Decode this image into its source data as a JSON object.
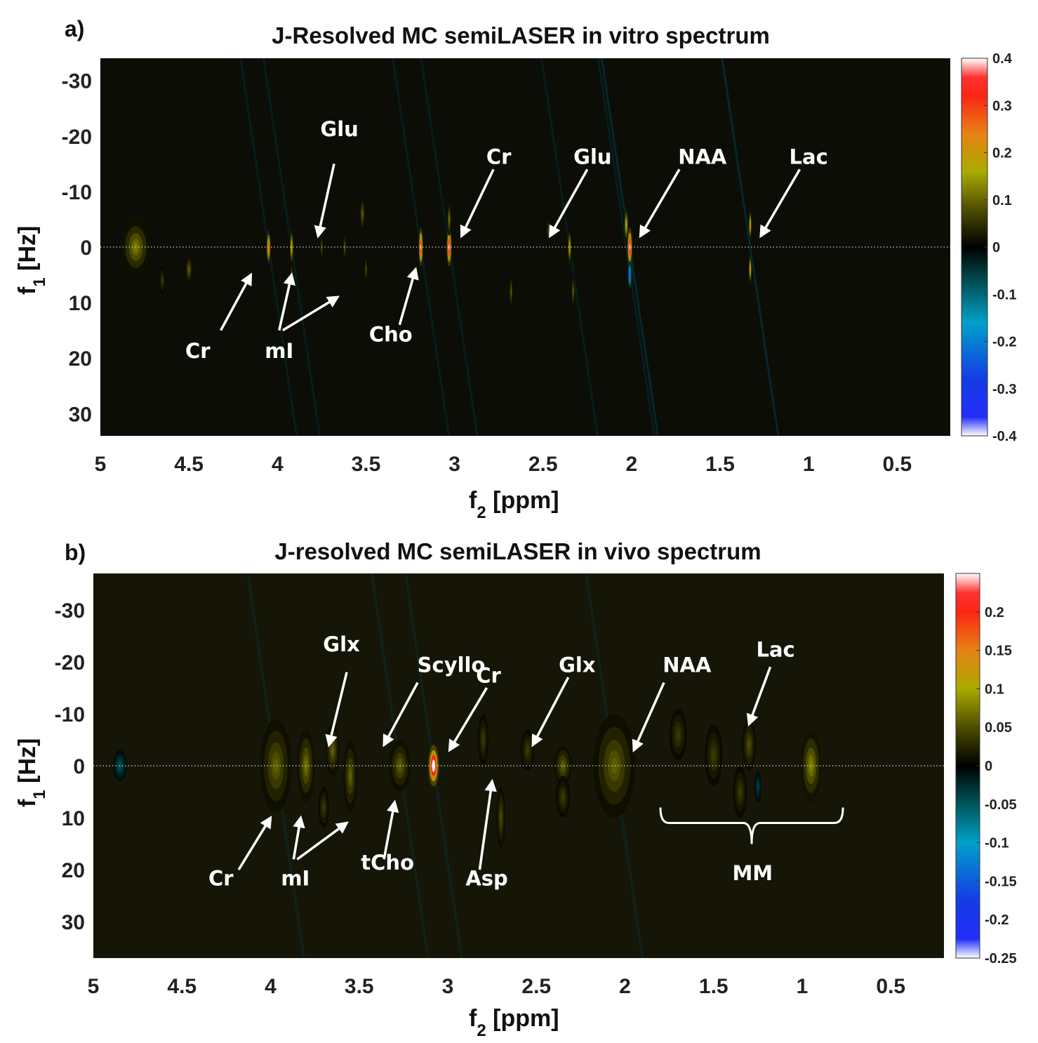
{
  "chart_data": [
    {
      "type": "heatmap",
      "panel_label": "a)",
      "title": "J-Resolved MC semiLASER in vitro spectrum",
      "xlabel": "f",
      "xlabel_sub": "2",
      "xlabel_unit": " [ppm]",
      "ylabel": "f",
      "ylabel_sub": "1",
      "ylabel_unit": " [Hz]",
      "xlim": [
        5,
        0.2
      ],
      "ylim": [
        -34,
        34
      ],
      "xticks": [
        5,
        4.5,
        4,
        3.5,
        3,
        2.5,
        2,
        1.5,
        1,
        0.5
      ],
      "xtick_labels": [
        "5",
        "4.5",
        "4",
        "3.5",
        "3",
        "2.5",
        "2",
        "1.5",
        "1",
        "0.5"
      ],
      "yticks": [
        -30,
        -20,
        -10,
        0,
        10,
        20,
        30
      ],
      "ytick_labels": [
        "-30",
        "-20",
        "-10",
        "0",
        "10",
        "20",
        "30"
      ],
      "colorbar": {
        "range": [
          -0.4,
          0.4
        ],
        "ticks": [
          0.4,
          0.3,
          0.2,
          0.1,
          0,
          -0.1,
          -0.2,
          -0.3,
          -0.4
        ],
        "tick_labels": [
          "0.4",
          "0.3",
          "0.2",
          "0.1",
          "0",
          "-0.1",
          "-0.2",
          "-0.3",
          "-0.4"
        ]
      },
      "peaks": [
        {
          "ppm": 4.05,
          "f1": 0,
          "amp": 0.3,
          "wx": 0.012,
          "wy": 3.0
        },
        {
          "ppm": 3.92,
          "f1": 0,
          "amp": 0.22,
          "wx": 0.01,
          "wy": 3.0
        },
        {
          "ppm": 3.92,
          "f1": 5,
          "amp": 0.08,
          "wx": 0.01,
          "wy": 2.5
        },
        {
          "ppm": 3.75,
          "f1": 0,
          "amp": 0.08,
          "wx": 0.01,
          "wy": 2.5
        },
        {
          "ppm": 3.62,
          "f1": 0,
          "amp": 0.09,
          "wx": 0.01,
          "wy": 2.5
        },
        {
          "ppm": 3.52,
          "f1": -6,
          "amp": 0.1,
          "wx": 0.015,
          "wy": 3.0
        },
        {
          "ppm": 3.5,
          "f1": 4,
          "amp": 0.08,
          "wx": 0.01,
          "wy": 2.5
        },
        {
          "ppm": 4.5,
          "f1": 4,
          "amp": 0.1,
          "wx": 0.02,
          "wy": 2.5
        },
        {
          "ppm": 4.65,
          "f1": 6,
          "amp": 0.06,
          "wx": 0.02,
          "wy": 2.5
        },
        {
          "ppm": 3.19,
          "f1": 0,
          "amp": 0.4,
          "wx": 0.012,
          "wy": 3.5
        },
        {
          "ppm": 3.03,
          "f1": 0,
          "amp": 0.45,
          "wx": 0.014,
          "wy": 3.5
        },
        {
          "ppm": 3.03,
          "f1": -5,
          "amp": 0.12,
          "wx": 0.012,
          "wy": 3.0
        },
        {
          "ppm": 2.68,
          "f1": 8,
          "amp": 0.1,
          "wx": 0.01,
          "wy": 3.0
        },
        {
          "ppm": 2.35,
          "f1": 0,
          "amp": 0.2,
          "wx": 0.01,
          "wy": 3.0
        },
        {
          "ppm": 2.33,
          "f1": 8,
          "amp": 0.1,
          "wx": 0.01,
          "wy": 3.0
        },
        {
          "ppm": 2.47,
          "f1": -3,
          "amp": 0.08,
          "wx": 0.01,
          "wy": 2.5
        },
        {
          "ppm": 2.01,
          "f1": 0,
          "amp": 0.45,
          "wx": 0.014,
          "wy": 3.5
        },
        {
          "ppm": 2.01,
          "f1": 5,
          "amp": -0.3,
          "wx": 0.01,
          "wy": 2.5
        },
        {
          "ppm": 2.03,
          "f1": -4,
          "amp": 0.2,
          "wx": 0.012,
          "wy": 3.0
        },
        {
          "ppm": 1.33,
          "f1": -4,
          "amp": 0.25,
          "wx": 0.008,
          "wy": 2.5
        },
        {
          "ppm": 1.33,
          "f1": 4,
          "amp": 0.25,
          "wx": 0.008,
          "wy": 2.5
        },
        {
          "ppm": 4.8,
          "f1": 0,
          "amp": 0.12,
          "wx": 0.08,
          "wy": 5.0
        }
      ],
      "annotations": [
        {
          "text": "Glu",
          "label_ppm": 3.65,
          "label_f1": -20,
          "arrows": [
            [
              3.68,
              -15,
              3.77,
              -2
            ]
          ]
        },
        {
          "text": "Cr",
          "label_ppm": 2.75,
          "label_f1": -15,
          "arrows": [
            [
              2.78,
              -14,
              2.96,
              -2
            ]
          ]
        },
        {
          "text": "Glu",
          "label_ppm": 2.22,
          "label_f1": -15,
          "arrows": [
            [
              2.25,
              -14,
              2.46,
              -2
            ]
          ]
        },
        {
          "text": "NAA",
          "label_ppm": 1.6,
          "label_f1": -15,
          "arrows": [
            [
              1.73,
              -14,
              1.95,
              -2
            ]
          ]
        },
        {
          "text": "Lac",
          "label_ppm": 1.0,
          "label_f1": -15,
          "arrows": [
            [
              1.05,
              -14,
              1.27,
              -2
            ]
          ]
        },
        {
          "text": "Cr",
          "label_ppm": 4.45,
          "label_f1": 20,
          "arrows": [
            [
              4.32,
              15,
              4.15,
              5
            ]
          ]
        },
        {
          "text": "mI",
          "label_ppm": 3.99,
          "label_f1": 20,
          "arrows": [
            [
              3.99,
              15,
              3.92,
              5
            ],
            [
              3.97,
              15,
              3.66,
              9
            ]
          ]
        },
        {
          "text": "Cho",
          "label_ppm": 3.36,
          "label_f1": 17,
          "arrows": [
            [
              3.31,
              14,
              3.22,
              4
            ]
          ]
        }
      ]
    },
    {
      "type": "heatmap",
      "panel_label": "b)",
      "title": "J-resolved MC semiLASER in vivo spectrum",
      "xlabel": "f",
      "xlabel_sub": "2",
      "xlabel_unit": " [ppm]",
      "ylabel": "f",
      "ylabel_sub": "1",
      "ylabel_unit": " [Hz]",
      "xlim": [
        5,
        0.2
      ],
      "ylim": [
        -37,
        37
      ],
      "xticks": [
        5,
        4.5,
        4,
        3.5,
        3,
        2.5,
        2,
        1.5,
        1,
        0.5
      ],
      "xtick_labels": [
        "5",
        "4.5",
        "4",
        "3.5",
        "3",
        "2.5",
        "2",
        "1.5",
        "1",
        "0.5"
      ],
      "yticks": [
        -30,
        -20,
        -10,
        0,
        10,
        20,
        30
      ],
      "ytick_labels": [
        "-30",
        "-20",
        "-10",
        "0",
        "10",
        "20",
        "30"
      ],
      "colorbar": {
        "range": [
          -0.25,
          0.25
        ],
        "ticks": [
          0.2,
          0.15,
          0.1,
          0.05,
          0,
          -0.05,
          -0.1,
          -0.15,
          -0.2,
          -0.25
        ],
        "tick_labels": [
          "0.2",
          "0.15",
          "0.1",
          "0.05",
          "0",
          "-0.05",
          "-0.1",
          "-0.15",
          "-0.2",
          "-0.25"
        ]
      },
      "peaks": [
        {
          "ppm": 3.97,
          "f1": 0,
          "amp": 0.2,
          "wx": 0.03,
          "wy": 3.5
        },
        {
          "ppm": 3.97,
          "f1": 0,
          "amp": 0.06,
          "wx": 0.09,
          "wy": 9.0
        },
        {
          "ppm": 3.8,
          "f1": 0,
          "amp": 0.07,
          "wx": 0.05,
          "wy": 7.0
        },
        {
          "ppm": 3.65,
          "f1": -3,
          "amp": 0.06,
          "wx": 0.04,
          "wy": 5.0
        },
        {
          "ppm": 3.55,
          "f1": 2,
          "amp": 0.06,
          "wx": 0.04,
          "wy": 7.0
        },
        {
          "ppm": 3.7,
          "f1": 8,
          "amp": 0.04,
          "wx": 0.03,
          "wy": 4.0
        },
        {
          "ppm": 3.27,
          "f1": 0,
          "amp": 0.2,
          "wx": 0.03,
          "wy": 3.0
        },
        {
          "ppm": 3.27,
          "f1": 0,
          "amp": 0.06,
          "wx": 0.06,
          "wy": 5.0
        },
        {
          "ppm": 3.08,
          "f1": 0,
          "amp": 0.32,
          "wx": 0.03,
          "wy": 4.0
        },
        {
          "ppm": 2.8,
          "f1": -5,
          "amp": 0.04,
          "wx": 0.03,
          "wy": 5.0
        },
        {
          "ppm": 2.7,
          "f1": 10,
          "amp": 0.05,
          "wx": 0.025,
          "wy": 6.0
        },
        {
          "ppm": 2.35,
          "f1": 0,
          "amp": 0.06,
          "wx": 0.05,
          "wy": 4.0
        },
        {
          "ppm": 2.35,
          "f1": 6,
          "amp": 0.04,
          "wx": 0.04,
          "wy": 4.0
        },
        {
          "ppm": 2.55,
          "f1": -3,
          "amp": 0.04,
          "wx": 0.04,
          "wy": 4.0
        },
        {
          "ppm": 2.06,
          "f1": 0,
          "amp": 0.32,
          "wx": 0.03,
          "wy": 4.0
        },
        {
          "ppm": 2.06,
          "f1": 0,
          "amp": 0.06,
          "wx": 0.12,
          "wy": 10.0
        },
        {
          "ppm": 1.7,
          "f1": -6,
          "amp": 0.04,
          "wx": 0.05,
          "wy": 5.0
        },
        {
          "ppm": 1.5,
          "f1": -2,
          "amp": 0.04,
          "wx": 0.05,
          "wy": 6.0
        },
        {
          "ppm": 1.3,
          "f1": -4,
          "amp": 0.05,
          "wx": 0.04,
          "wy": 5.0
        },
        {
          "ppm": 1.35,
          "f1": 5,
          "amp": 0.04,
          "wx": 0.04,
          "wy": 5.0
        },
        {
          "ppm": 1.25,
          "f1": 4,
          "amp": -0.04,
          "wx": 0.02,
          "wy": 3.0
        },
        {
          "ppm": 0.95,
          "f1": 0,
          "amp": 0.08,
          "wx": 0.06,
          "wy": 7.0
        },
        {
          "ppm": 4.85,
          "f1": 0,
          "amp": -0.05,
          "wx": 0.04,
          "wy": 3.0
        }
      ],
      "annotations": [
        {
          "text": "Glx",
          "label_ppm": 3.6,
          "label_f1": -22,
          "arrows": [
            [
              3.57,
              -18,
              3.67,
              -4
            ]
          ]
        },
        {
          "text": "Scyllo",
          "label_ppm": 2.98,
          "label_f1": -18,
          "arrows": [
            [
              3.17,
              -16,
              3.36,
              -4
            ]
          ]
        },
        {
          "text": "Cr",
          "label_ppm": 2.77,
          "label_f1": -16,
          "arrows": [
            [
              2.78,
              -15,
              2.99,
              -3
            ]
          ]
        },
        {
          "text": "Glx",
          "label_ppm": 2.27,
          "label_f1": -18,
          "arrows": [
            [
              2.32,
              -17,
              2.52,
              -4
            ]
          ]
        },
        {
          "text": "NAA",
          "label_ppm": 1.65,
          "label_f1": -18,
          "arrows": [
            [
              1.78,
              -16,
              1.95,
              -3
            ]
          ]
        },
        {
          "text": "Lac",
          "label_ppm": 1.15,
          "label_f1": -21,
          "arrows": [
            [
              1.18,
              -19,
              1.3,
              -8
            ]
          ]
        },
        {
          "text": "Cr",
          "label_ppm": 4.28,
          "label_f1": 23,
          "arrows": [
            [
              4.18,
              20,
              4.0,
              10
            ]
          ]
        },
        {
          "text": "mI",
          "label_ppm": 3.86,
          "label_f1": 23,
          "arrows": [
            [
              3.87,
              18,
              3.83,
              10
            ],
            [
              3.85,
              18,
              3.57,
              11
            ]
          ]
        },
        {
          "text": "tCho",
          "label_ppm": 3.34,
          "label_f1": 20,
          "arrows": [
            [
              3.36,
              18,
              3.3,
              7
            ]
          ]
        },
        {
          "text": "Asp",
          "label_ppm": 2.78,
          "label_f1": 23,
          "arrows": [
            [
              2.82,
              20,
              2.75,
              3
            ]
          ]
        },
        {
          "text": "MM",
          "label_ppm": 1.28,
          "label_f1": 22,
          "arrows": []
        }
      ],
      "brace": {
        "ppm_start": 1.8,
        "ppm_end": 0.77,
        "f1": 11
      }
    }
  ]
}
